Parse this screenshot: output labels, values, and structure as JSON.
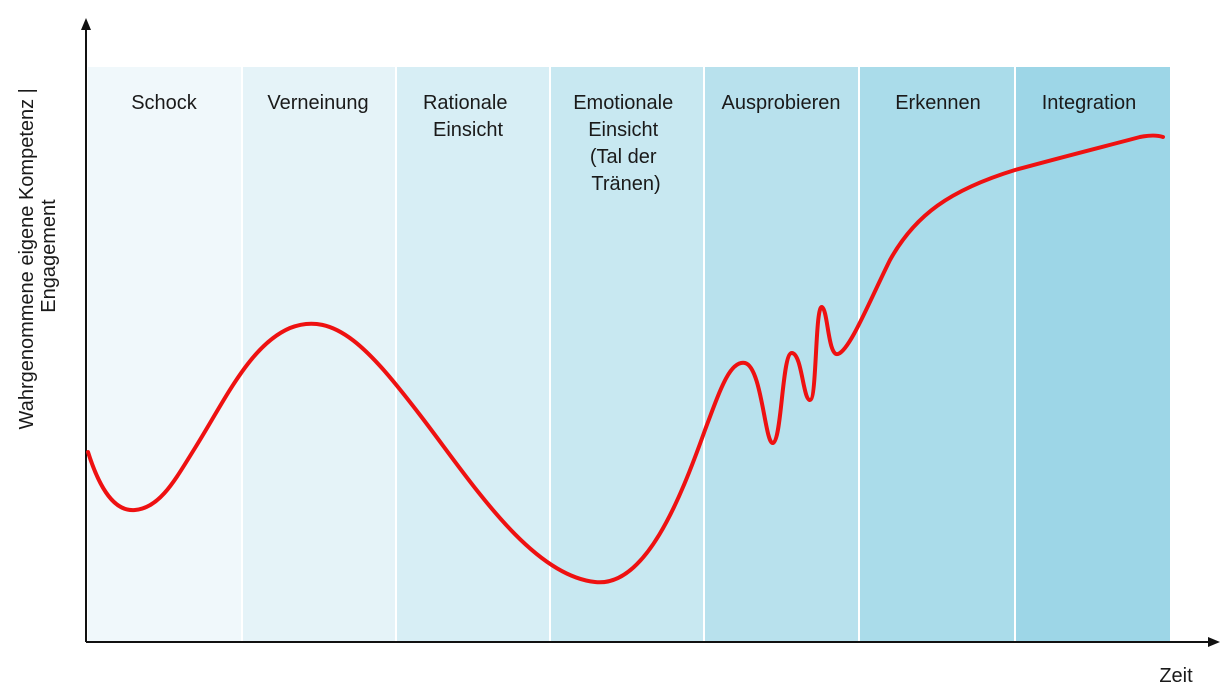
{
  "diagram": {
    "y_axis_label_line1": "Wahrgenommene eigene Kompetenz |",
    "y_axis_label_line2": "Engagement",
    "x_axis_label": "Zeit",
    "curve_color": "#ee1111",
    "axis_color": "#111111",
    "phases": [
      {
        "label_lines": [
          "Schock"
        ],
        "color": "#f0f8fb"
      },
      {
        "label_lines": [
          "Verneinung"
        ],
        "color": "#e5f3f8"
      },
      {
        "label_lines": [
          "Rationale",
          "Einsicht"
        ],
        "color": "#d7eef5"
      },
      {
        "label_lines": [
          "Emotionale",
          "Einsicht",
          "(Tal der",
          "Tränen)"
        ],
        "color": "#c8e8f1"
      },
      {
        "label_lines": [
          "Ausprobieren"
        ],
        "color": "#b8e1ed"
      },
      {
        "label_lines": [
          "Erkennen"
        ],
        "color": "#aadcea"
      },
      {
        "label_lines": [
          "Integration"
        ],
        "color": "#9dd6e7"
      }
    ]
  }
}
